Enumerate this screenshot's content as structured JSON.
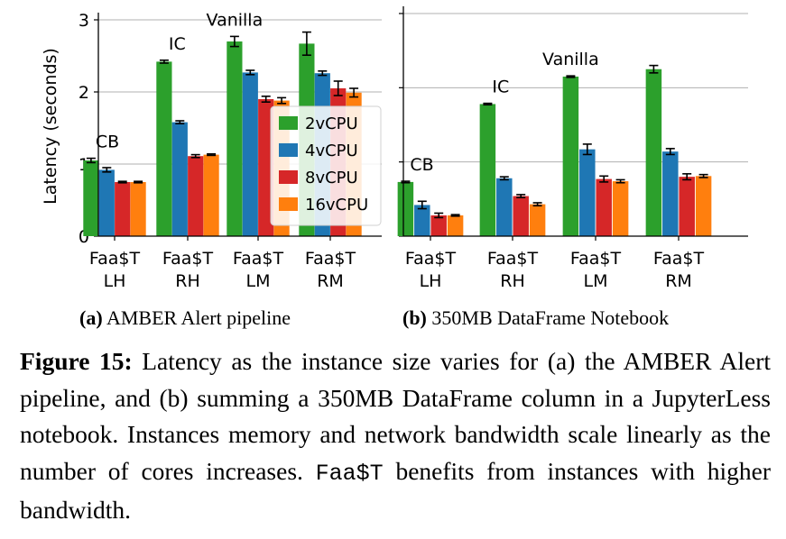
{
  "chart_data": [
    {
      "type": "bar",
      "subcaption_label": "(a)",
      "subcaption_text": "AMBER Alert pipeline",
      "ylabel": "Latency (seconds)",
      "ylim": [
        0,
        3
      ],
      "yticks": [
        "0",
        "1",
        "2",
        "3"
      ],
      "categories": [
        [
          "Faa$T",
          "LH"
        ],
        [
          "Faa$T",
          "RH"
        ],
        [
          "Faa$T",
          "LM"
        ],
        [
          "Faa$T",
          "RM"
        ]
      ],
      "group_annotations": [
        "CB",
        "IC",
        "Vanilla",
        ""
      ],
      "grid": true,
      "legend_position": "center-right",
      "series": [
        {
          "name": "2vCPU",
          "color": "#2ca02c",
          "values": [
            1.05,
            2.42,
            2.7,
            2.67
          ],
          "errors": [
            0.03,
            0.02,
            0.07,
            0.16
          ]
        },
        {
          "name": "4vCPU",
          "color": "#1f77b4",
          "values": [
            0.92,
            1.58,
            2.27,
            2.26
          ],
          "errors": [
            0.03,
            0.02,
            0.03,
            0.03
          ]
        },
        {
          "name": "8vCPU",
          "color": "#d62728",
          "values": [
            0.75,
            1.11,
            1.9,
            2.05
          ],
          "errors": [
            0.01,
            0.02,
            0.04,
            0.1
          ]
        },
        {
          "name": "16vCPU",
          "color": "#ff7f0e",
          "values": [
            0.75,
            1.13,
            1.88,
            1.99
          ],
          "errors": [
            0.01,
            0.01,
            0.04,
            0.06
          ]
        }
      ]
    },
    {
      "type": "bar",
      "subcaption_label": "(b)",
      "subcaption_text": "350MB DataFrame Notebook",
      "ylabel": "",
      "ylim": [
        0,
        3
      ],
      "yticks": [
        "",
        "",
        "",
        ""
      ],
      "categories": [
        [
          "Faa$T",
          "LH"
        ],
        [
          "Faa$T",
          "RH"
        ],
        [
          "Faa$T",
          "LM"
        ],
        [
          "Faa$T",
          "RM"
        ]
      ],
      "group_annotations": [
        "CB",
        "IC",
        "Vanilla",
        ""
      ],
      "grid": true,
      "legend_position": "none",
      "series": [
        {
          "name": "2vCPU",
          "color": "#2ca02c",
          "values": [
            0.73,
            1.78,
            2.15,
            2.25
          ],
          "errors": [
            0.01,
            0.01,
            0.01,
            0.05
          ]
        },
        {
          "name": "4vCPU",
          "color": "#1f77b4",
          "values": [
            0.42,
            0.78,
            1.17,
            1.14
          ],
          "errors": [
            0.05,
            0.02,
            0.07,
            0.04
          ]
        },
        {
          "name": "8vCPU",
          "color": "#d62728",
          "values": [
            0.28,
            0.54,
            0.77,
            0.8
          ],
          "errors": [
            0.03,
            0.02,
            0.04,
            0.04
          ]
        },
        {
          "name": "16vCPU",
          "color": "#ff7f0e",
          "values": [
            0.28,
            0.43,
            0.74,
            0.81
          ],
          "errors": [
            0.01,
            0.02,
            0.02,
            0.02
          ]
        }
      ]
    }
  ],
  "caption": {
    "label": "Figure 15:",
    "text_1": "Latency as the instance size varies for (a) the AMBER Alert pipeline, and (b) summing a 350MB DataFrame column in a JupyterLess notebook.  Instances memory and network bandwidth scale linearly as the number of cores increases. ",
    "mono": "Faa$T",
    "text_2": " benefits from instances with higher bandwidth."
  }
}
